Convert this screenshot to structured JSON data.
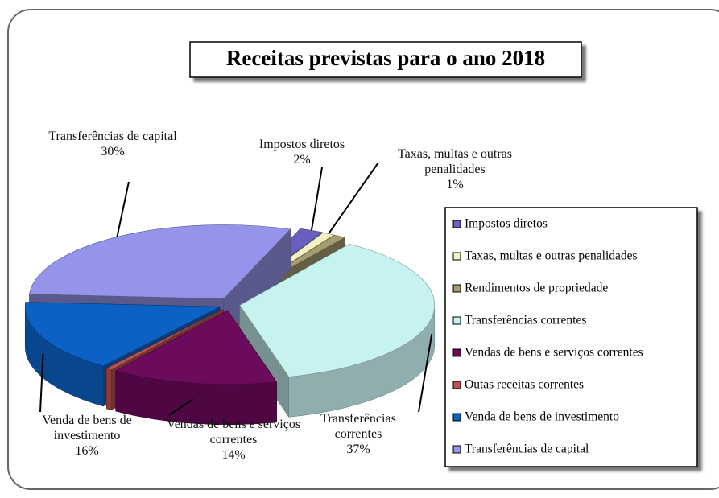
{
  "chart_data": {
    "type": "pie",
    "three_d": true,
    "title": "Receitas previstas para o ano 2018",
    "categories": [
      "Impostos diretos",
      "Taxas, multas e outras penalidades",
      "Rendimentos de propriedade",
      "Transferências correntes",
      "Vendas de bens e serviços correntes",
      "Outas receitas correntes",
      "Venda de bens de investimento",
      "Transferências de capital"
    ],
    "values": [
      2,
      1,
      1,
      37,
      14,
      0.5,
      16,
      30
    ],
    "value_labels": [
      "2%",
      "1%",
      null,
      "37%",
      "14%",
      null,
      "16%",
      "30%"
    ],
    "colors": [
      "#6a5fc0",
      "#f2f2c4",
      "#a59d72",
      "#c6f2f0",
      "#6c0a5c",
      "#c0504d",
      "#0b62c4",
      "#9494ea"
    ],
    "legend": "right"
  }
}
